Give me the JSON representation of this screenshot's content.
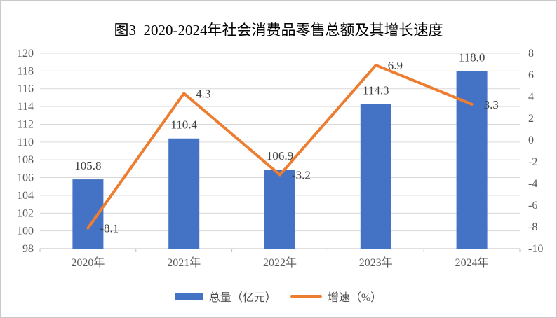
{
  "chart_data": {
    "type": "bar+line",
    "title": "图3  2020-2024年社会消费品零售总额及其增长速度",
    "categories": [
      "2020年",
      "2021年",
      "2022年",
      "2023年",
      "2024年"
    ],
    "series": [
      {
        "name": "总量（亿元）",
        "type": "bar",
        "axis": "left",
        "color": "#4472C4",
        "values": [
          105.8,
          110.4,
          106.9,
          114.3,
          118.0
        ],
        "labels": [
          "105.8",
          "110.4",
          "106.9",
          "114.3",
          "118.0"
        ]
      },
      {
        "name": "增速（%）",
        "type": "line",
        "axis": "right",
        "color": "#ED7D31",
        "values": [
          -8.1,
          4.3,
          -3.2,
          6.9,
          3.3
        ],
        "labels": [
          "-8.1",
          "4.3",
          "-3.2",
          "6.9",
          "3.3"
        ]
      }
    ],
    "left_axis": {
      "min": 98,
      "max": 120,
      "step": 2,
      "ticks": [
        "120",
        "118",
        "116",
        "114",
        "112",
        "110",
        "108",
        "106",
        "104",
        "102",
        "100",
        "98"
      ]
    },
    "right_axis": {
      "min": -10,
      "max": 8,
      "step": 2,
      "ticks": [
        "8",
        "6",
        "4",
        "2",
        "0",
        "-2",
        "-4",
        "-6",
        "-8",
        "-10"
      ]
    },
    "legend": {
      "position": "bottom",
      "entries": [
        "总量（亿元）",
        "增速（%）"
      ]
    },
    "grid": true,
    "colors": {
      "grid": "#D9D9D9",
      "axis": "#BFBFBF",
      "tick_text": "#595959",
      "data_label_text": "#404040",
      "title_text": "#000000",
      "border": "#C9C9C9"
    }
  }
}
